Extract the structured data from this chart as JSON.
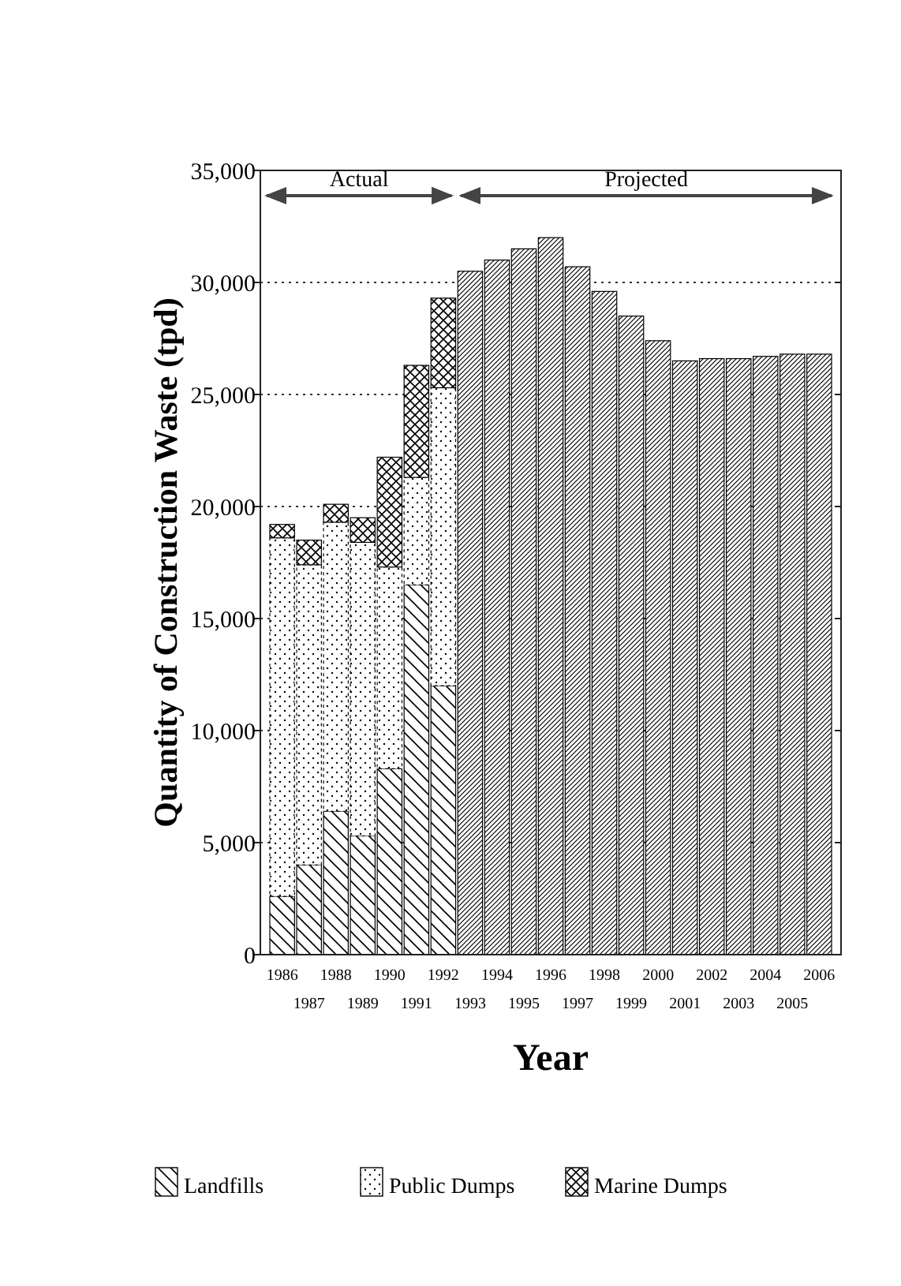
{
  "chart_data": {
    "type": "bar",
    "stacked": true,
    "xlabel": "Year",
    "ylabel": "Quantity of Construction Waste (tpd)",
    "categories": [
      "1986",
      "1987",
      "1988",
      "1989",
      "1990",
      "1991",
      "1992",
      "1993",
      "1994",
      "1995",
      "1996",
      "1997",
      "1998",
      "1999",
      "2000",
      "2001",
      "2002",
      "2003",
      "2004",
      "2005",
      "2006"
    ],
    "series": [
      {
        "name": "Landfills",
        "color": "#000000",
        "values": [
          2600,
          4000,
          6400,
          5300,
          8300,
          16500,
          12000,
          null,
          null,
          null,
          null,
          null,
          null,
          null,
          null,
          null,
          null,
          null,
          null,
          null,
          null
        ]
      },
      {
        "name": "Public Dumps",
        "color": "#000000",
        "values": [
          16000,
          13400,
          12900,
          13100,
          9000,
          4800,
          13300,
          null,
          null,
          null,
          null,
          null,
          null,
          null,
          null,
          null,
          null,
          null,
          null,
          null,
          null
        ]
      },
      {
        "name": "Marine Dumps",
        "color": "#000000",
        "values": [
          600,
          1100,
          800,
          1100,
          4900,
          5000,
          4000,
          null,
          null,
          null,
          null,
          null,
          null,
          null,
          null,
          null,
          null,
          null,
          null,
          null,
          null
        ]
      },
      {
        "color": "#000000",
        "values": [
          null,
          null,
          null,
          null,
          null,
          null,
          null,
          30500,
          31000,
          31500,
          32000,
          30700,
          29600,
          28500,
          27400,
          26500,
          26600,
          26600,
          26700,
          26800,
          26800
        ]
      }
    ],
    "ylim": [
      0,
      35000
    ],
    "yticks": [
      0,
      {
        "value": 5000,
        "label": "5,000"
      },
      {
        "value": 10000,
        "label": "10,000"
      },
      {
        "value": 15000,
        "label": "15,000"
      },
      {
        "value": 20000,
        "label": "20,000"
      },
      {
        "value": 25000,
        "label": "25,000"
      },
      {
        "value": 30000,
        "label": "30,000"
      },
      {
        "value": 35000,
        "label": "35,000"
      }
    ],
    "grid": "y",
    "legend": "bottom",
    "annotations": [
      "Actual",
      "Projected"
    ]
  }
}
